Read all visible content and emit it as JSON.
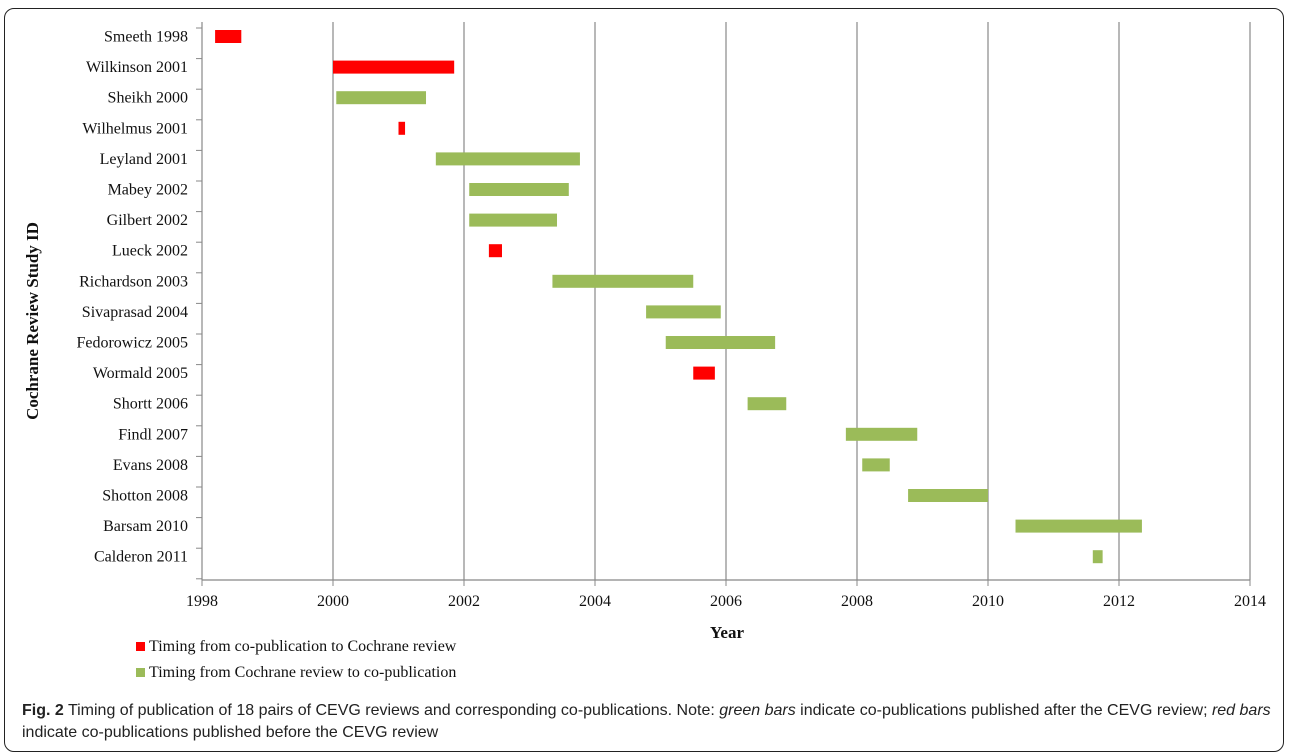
{
  "chart_data": {
    "type": "bar",
    "orientation": "horizontal-range",
    "ylabel": "Cochrane Review Study ID",
    "xlabel": "Year",
    "xlim": [
      1998,
      2014
    ],
    "xticks": [
      1998,
      2000,
      2002,
      2004,
      2006,
      2008,
      2010,
      2012,
      2014
    ],
    "grid": "vertical",
    "legend_position": "bottom-left",
    "colors": {
      "before": "#ff0000",
      "after": "#9bbb59"
    },
    "legend": [
      {
        "key": "before",
        "label": "Timing from co-publication to Cochrane review"
      },
      {
        "key": "after",
        "label": "Timing from Cochrane review to co-publication"
      }
    ],
    "categories": [
      "Smeeth 1998",
      "Wilkinson 2001",
      "Sheikh 2000",
      "Wilhelmus 2001",
      "Leyland 2001",
      "Mabey 2002",
      "Gilbert 2002",
      "Lueck 2002",
      "Richardson 2003",
      "Sivaprasad 2004",
      "Fedorowicz 2005",
      "Wormald 2005",
      "Shortt 2006",
      "Findl 2007",
      "Evans 2008",
      "Shotton 2008",
      "Barsam 2010",
      "Calderon 2011"
    ],
    "ranges": [
      {
        "study": "Smeeth 1998",
        "start": 1998.2,
        "end": 1998.6,
        "series": "before"
      },
      {
        "study": "Wilkinson 2001",
        "start": 2000.0,
        "end": 2001.85,
        "series": "before"
      },
      {
        "study": "Sheikh 2000",
        "start": 2000.05,
        "end": 2001.42,
        "series": "after"
      },
      {
        "study": "Wilhelmus 2001",
        "start": 2001.0,
        "end": 2001.1,
        "series": "before"
      },
      {
        "study": "Leyland 2001",
        "start": 2001.57,
        "end": 2003.77,
        "series": "after"
      },
      {
        "study": "Mabey 2002",
        "start": 2002.08,
        "end": 2003.6,
        "series": "after"
      },
      {
        "study": "Gilbert 2002",
        "start": 2002.08,
        "end": 2003.42,
        "series": "after"
      },
      {
        "study": "Lueck 2002",
        "start": 2002.38,
        "end": 2002.58,
        "series": "before"
      },
      {
        "study": "Richardson 2003",
        "start": 2003.35,
        "end": 2005.5,
        "series": "after"
      },
      {
        "study": "Sivaprasad 2004",
        "start": 2004.78,
        "end": 2005.92,
        "series": "after"
      },
      {
        "study": "Fedorowicz 2005",
        "start": 2005.08,
        "end": 2006.75,
        "series": "after"
      },
      {
        "study": "Wormald 2005",
        "start": 2005.5,
        "end": 2005.83,
        "series": "before"
      },
      {
        "study": "Shortt 2006",
        "start": 2006.33,
        "end": 2006.92,
        "series": "after"
      },
      {
        "study": "Findl 2007",
        "start": 2007.83,
        "end": 2008.92,
        "series": "after"
      },
      {
        "study": "Evans 2008",
        "start": 2008.08,
        "end": 2008.5,
        "series": "after"
      },
      {
        "study": "Shotton 2008",
        "start": 2008.78,
        "end": 2010.0,
        "series": "after"
      },
      {
        "study": "Barsam 2010",
        "start": 2010.42,
        "end": 2012.35,
        "series": "after"
      },
      {
        "study": "Calderon 2011",
        "start": 2011.6,
        "end": 2011.75,
        "series": "after"
      }
    ]
  },
  "caption": {
    "fig_label": "Fig. 2",
    "text_1": " Timing of publication of 18 pairs of CEVG reviews and corresponding co-publications. Note: ",
    "italic_1": "green bars",
    "text_2": " indicate co-publications published after the CEVG review; ",
    "italic_2": "red bars",
    "text_3": " indicate co-publications published before the CEVG review"
  }
}
